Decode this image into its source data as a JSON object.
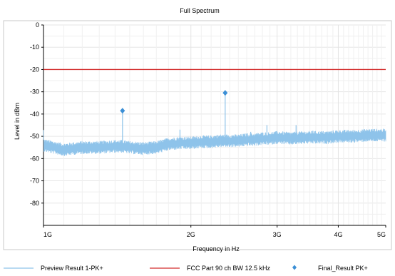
{
  "chart_data": {
    "type": "line",
    "title": "Full Spectrum",
    "xlabel": "Frequency in Hz",
    "ylabel": "Level in dBm",
    "x_scale": "log",
    "xlim": [
      1000000000,
      5000000000
    ],
    "ylim": [
      -90,
      0
    ],
    "x_ticks": [
      {
        "value": 1000000000,
        "label": "1G"
      },
      {
        "value": 2000000000,
        "label": "2G"
      },
      {
        "value": 3000000000,
        "label": "3G"
      },
      {
        "value": 4000000000,
        "label": "4G"
      },
      {
        "value": 5000000000,
        "label": "5G"
      }
    ],
    "y_ticks": [
      0,
      -10,
      -20,
      -30,
      -40,
      -50,
      -60,
      -70,
      -80
    ],
    "grid": true,
    "legend_position": "bottom",
    "series": [
      {
        "name": "Preview Result 1-PK+",
        "kind": "noise-trace",
        "color": "#8ec3ea",
        "x": [
          1000000000,
          1050000000,
          1100000000,
          1200000000,
          1300000000,
          1400000000,
          1450000000,
          1500000000,
          1600000000,
          1700000000,
          1800000000,
          1900000000,
          2000000000,
          2100000000,
          2200000000,
          2300000000,
          2400000000,
          2500000000,
          2600000000,
          2700000000,
          2800000000,
          2900000000,
          3000000000,
          3200000000,
          3400000000,
          3600000000,
          3800000000,
          4000000000,
          4300000000,
          4600000000,
          5000000000
        ],
        "y": [
          -54,
          -55,
          -56,
          -55,
          -55,
          -54.5,
          -54.5,
          -55,
          -55.5,
          -55,
          -53.5,
          -53,
          -53,
          -52.5,
          -52.5,
          -52,
          -52,
          -52,
          -51.5,
          -51.5,
          -51,
          -51,
          -50.5,
          -51,
          -50.5,
          -50.5,
          -50.5,
          -50,
          -50,
          -49.5,
          -49.5
        ],
        "spikes": [
          {
            "x": 1450000000,
            "y": -38
          },
          {
            "x": 1900000000,
            "y": -47
          },
          {
            "x": 2350000000,
            "y": -30.5
          },
          {
            "x": 2650000000,
            "y": -48
          },
          {
            "x": 2860000000,
            "y": -45
          },
          {
            "x": 3280000000,
            "y": -45
          },
          {
            "x": 3550000000,
            "y": -47.5
          }
        ]
      },
      {
        "name": "FCC Part 90 ch BW 12.5 kHz",
        "kind": "limit-line",
        "color": "#d32f2f",
        "x": [
          1000000000,
          5000000000
        ],
        "y": [
          -20,
          -20
        ]
      },
      {
        "name": "Final_Result PK+",
        "kind": "markers",
        "color": "#3b8fd6",
        "x": [
          1450000000,
          2350000000
        ],
        "y": [
          -38.5,
          -30.5
        ]
      }
    ]
  }
}
